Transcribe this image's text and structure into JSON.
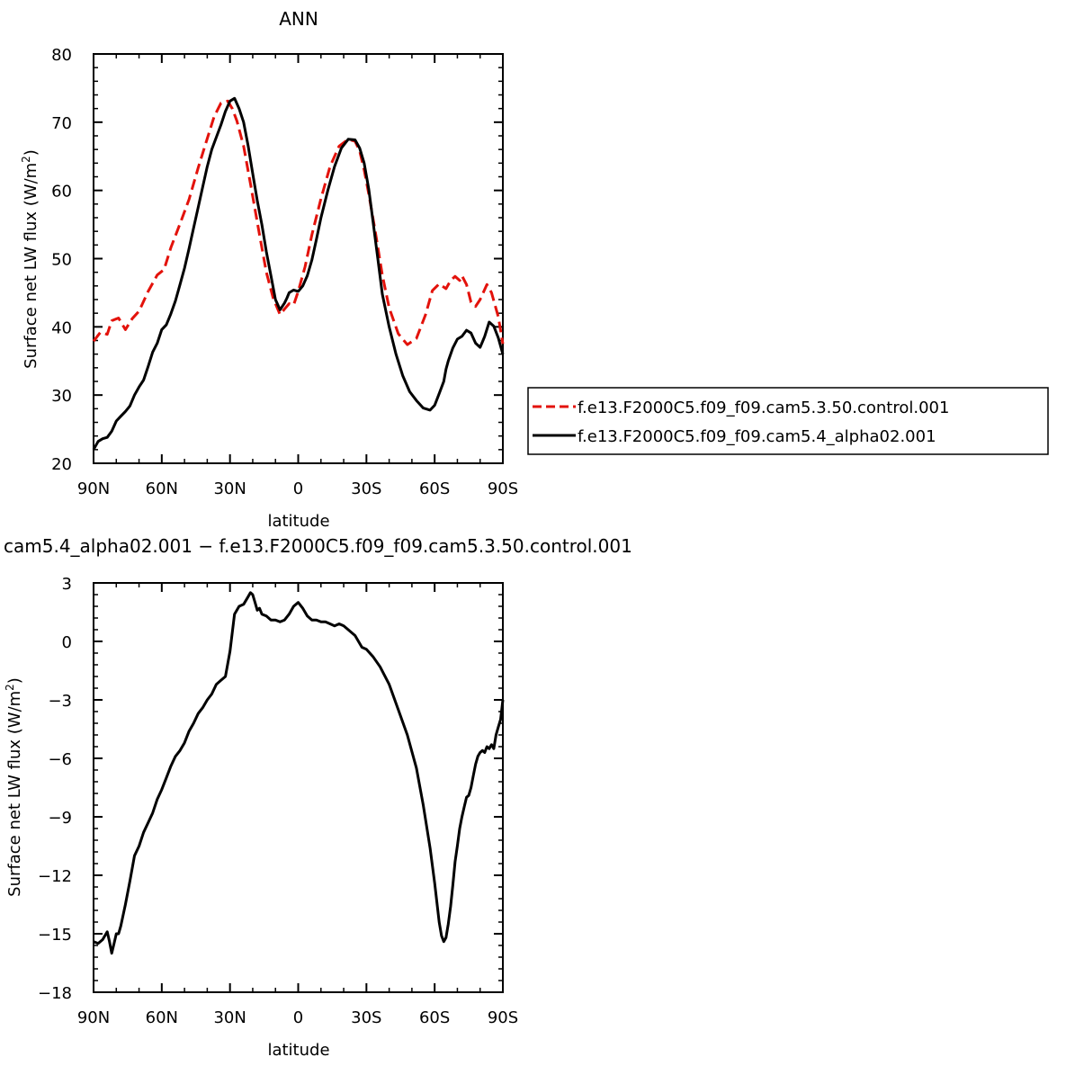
{
  "chart_data": [
    {
      "type": "line",
      "title": "ANN",
      "xlabel": "latitude",
      "ylabel": "Surface net LW flux (W/m",
      "ylabel_sup": "2",
      "ylabel_close": ")",
      "xlim": [
        90,
        -90
      ],
      "ylim": [
        20,
        80
      ],
      "xticks": [
        {
          "value": 90,
          "label": "90N"
        },
        {
          "value": 60,
          "label": "60N"
        },
        {
          "value": 30,
          "label": "30N"
        },
        {
          "value": 0,
          "label": "0"
        },
        {
          "value": -30,
          "label": "30S"
        },
        {
          "value": -60,
          "label": "60S"
        },
        {
          "value": -90,
          "label": "90S"
        }
      ],
      "yticks": [
        20,
        30,
        40,
        50,
        60,
        70,
        80
      ],
      "legend_position": "right",
      "series": [
        {
          "name": "f.e13.F2000C5.f09_f09.cam5.3.50.control.001",
          "color": "#e3120b",
          "dash": "dashed",
          "x": [
            90,
            87,
            84,
            82,
            79,
            76,
            73,
            70,
            66,
            62,
            59,
            56,
            52,
            48,
            44,
            40,
            37,
            34,
            31,
            29,
            27,
            24,
            21,
            17,
            14,
            11,
            8,
            6,
            4,
            2,
            0,
            -3,
            -6,
            -10,
            -14,
            -18,
            -22,
            -25,
            -27,
            -29,
            -31,
            -34,
            -37,
            -40,
            -44,
            -48,
            -52,
            -56,
            -59,
            -62,
            -65,
            -67,
            -69,
            -71,
            -72,
            -74,
            -76,
            -78,
            -80,
            -83,
            -85,
            -88,
            -90
          ],
          "y": [
            37.9,
            39.2,
            38.9,
            40.9,
            41.3,
            39.6,
            41.2,
            42.3,
            45.2,
            47.6,
            48.4,
            51.6,
            55.1,
            58.7,
            63.3,
            67.6,
            70.8,
            72.8,
            73.1,
            72.0,
            70.2,
            66.5,
            61.0,
            53.5,
            48.0,
            44.2,
            41.8,
            42.6,
            43.4,
            43.2,
            45.2,
            48.8,
            53.5,
            58.8,
            63.5,
            66.5,
            67.5,
            67.2,
            65.8,
            63.0,
            59.5,
            53.8,
            47.6,
            42.8,
            39.0,
            37.4,
            38.3,
            41.8,
            45.3,
            46.3,
            45.6,
            46.8,
            47.4,
            46.8,
            47.5,
            46.2,
            43.6,
            43.0,
            44.0,
            46.2,
            45.0,
            41.5,
            37.5
          ]
        },
        {
          "name": "f.e13.F2000C5.f09_f09.cam5.4_alpha02.001",
          "color": "#000000",
          "dash": "solid",
          "x": [
            90,
            88,
            86,
            84,
            82,
            80,
            78,
            76,
            74,
            72,
            70,
            68,
            66,
            64,
            62,
            60,
            58,
            56,
            54,
            52,
            50,
            48,
            46,
            44,
            42,
            40,
            38,
            36,
            34,
            32,
            30,
            28,
            26,
            24,
            22,
            20,
            18,
            16,
            14,
            12,
            10,
            8,
            6,
            5,
            4,
            2,
            0,
            -2,
            -4,
            -6,
            -8,
            -10,
            -13,
            -16,
            -19,
            -22,
            -25,
            -27,
            -29,
            -31,
            -33,
            -35,
            -37,
            -40,
            -43,
            -46,
            -49,
            -52,
            -55,
            -58,
            -60,
            -62,
            -64,
            -65,
            -66,
            -68,
            -70,
            -72,
            -74,
            -76,
            -78,
            -80,
            -81,
            -82,
            -84,
            -86,
            -88,
            -90
          ],
          "y": [
            22.0,
            23.2,
            23.6,
            23.8,
            24.7,
            26.2,
            26.9,
            27.6,
            28.4,
            30.0,
            31.2,
            32.2,
            34.2,
            36.3,
            37.6,
            39.6,
            40.3,
            41.9,
            43.8,
            46.2,
            48.6,
            51.5,
            54.5,
            57.5,
            60.5,
            63.5,
            66.0,
            67.8,
            69.6,
            71.6,
            73.1,
            73.5,
            72.0,
            70.0,
            66.5,
            62.5,
            58.5,
            55.0,
            51.0,
            47.5,
            44.0,
            42.5,
            43.5,
            44.2,
            45.0,
            45.4,
            45.2,
            46.0,
            47.5,
            49.8,
            52.8,
            56.0,
            60.0,
            63.5,
            66.2,
            67.5,
            67.4,
            66.2,
            64.0,
            60.2,
            55.2,
            50.0,
            44.8,
            40.0,
            36.0,
            32.8,
            30.5,
            29.2,
            28.1,
            27.8,
            28.5,
            30.2,
            32.0,
            33.8,
            35.0,
            36.9,
            38.2,
            38.6,
            39.5,
            39.1,
            37.6,
            37.0,
            37.8,
            38.6,
            40.7,
            40.1,
            38.4,
            36.0
          ]
        }
      ]
    },
    {
      "type": "line",
      "title": "cam5.4_alpha02.001 − f.e13.F2000C5.f09_f09.cam5.3.50.control.001",
      "xlabel": "latitude",
      "ylabel": "Surface net LW flux (W/m",
      "ylabel_sup": "2",
      "ylabel_close": ")",
      "xlim": [
        90,
        -90
      ],
      "ylim": [
        -18,
        3
      ],
      "xticks": [
        {
          "value": 90,
          "label": "90N"
        },
        {
          "value": 60,
          "label": "60N"
        },
        {
          "value": 30,
          "label": "30N"
        },
        {
          "value": 0,
          "label": "0"
        },
        {
          "value": -30,
          "label": "30S"
        },
        {
          "value": -60,
          "label": "60S"
        },
        {
          "value": -90,
          "label": "90S"
        }
      ],
      "yticks": [
        -18,
        -15,
        -12,
        -9,
        -6,
        -3,
        0,
        3
      ],
      "series": [
        {
          "color": "#000000",
          "dash": "solid",
          "x": [
            90,
            88,
            86,
            84,
            83,
            82,
            81,
            80,
            79,
            78,
            76,
            74,
            72,
            70,
            68,
            66,
            64,
            62,
            60,
            58,
            56,
            54,
            52,
            50,
            48,
            46,
            44,
            42,
            40,
            38,
            36,
            34,
            32,
            30,
            28,
            26,
            24,
            22,
            21,
            20,
            19,
            18,
            17,
            16,
            14,
            12,
            10,
            8,
            6,
            4,
            2,
            0,
            -2,
            -4,
            -6,
            -8,
            -10,
            -12,
            -14,
            -16,
            -18,
            -20,
            -22,
            -25,
            -28,
            -30,
            -33,
            -36,
            -40,
            -44,
            -48,
            -52,
            -55,
            -58,
            -60,
            -61,
            -62,
            -63,
            -64,
            -65,
            -66,
            -67,
            -68,
            -69,
            -70,
            -71,
            -72,
            -73,
            -74,
            -75,
            -76,
            -77,
            -78,
            -79,
            -80,
            -81,
            -82,
            -83,
            -84,
            -85,
            -86,
            -87,
            -88,
            -89,
            -90
          ],
          "y": [
            -15.4,
            -15.5,
            -15.3,
            -14.9,
            -15.4,
            -16.0,
            -15.5,
            -15.0,
            -15.0,
            -14.6,
            -13.5,
            -12.3,
            -11.0,
            -10.5,
            -9.8,
            -9.3,
            -8.8,
            -8.1,
            -7.6,
            -7.0,
            -6.4,
            -5.9,
            -5.6,
            -5.2,
            -4.6,
            -4.2,
            -3.7,
            -3.4,
            -3.0,
            -2.7,
            -2.2,
            -2.0,
            -1.8,
            -0.5,
            1.4,
            1.8,
            1.9,
            2.3,
            2.5,
            2.4,
            2.0,
            1.6,
            1.7,
            1.4,
            1.3,
            1.1,
            1.1,
            1.0,
            1.1,
            1.4,
            1.8,
            2.0,
            1.7,
            1.3,
            1.1,
            1.1,
            1.0,
            1.0,
            0.9,
            0.8,
            0.9,
            0.8,
            0.6,
            0.3,
            -0.3,
            -0.4,
            -0.8,
            -1.3,
            -2.2,
            -3.5,
            -4.8,
            -6.5,
            -8.4,
            -10.6,
            -12.4,
            -13.4,
            -14.4,
            -15.1,
            -15.4,
            -15.2,
            -14.5,
            -13.6,
            -12.5,
            -11.3,
            -10.5,
            -9.6,
            -9.0,
            -8.5,
            -8.0,
            -7.9,
            -7.5,
            -6.9,
            -6.3,
            -5.9,
            -5.7,
            -5.6,
            -5.7,
            -5.4,
            -5.5,
            -5.3,
            -5.5,
            -4.8,
            -4.4,
            -4.0,
            -3.0
          ]
        }
      ]
    }
  ]
}
